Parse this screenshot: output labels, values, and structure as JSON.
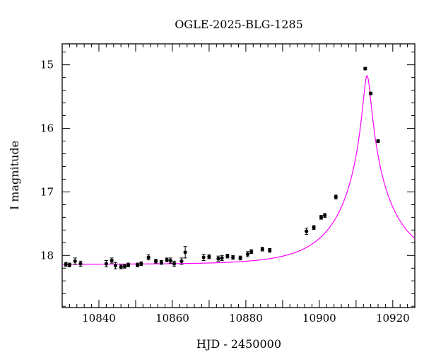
{
  "chart_data": {
    "type": "scatter",
    "title": "OGLE-2025-BLG-1285",
    "xlabel": "HJD - 2450000",
    "ylabel": "I magnitude",
    "xlim": [
      10830,
      10926
    ],
    "ylim": [
      18.82,
      14.67
    ],
    "y_inverted": true,
    "x_major_ticks": [
      10840,
      10860,
      10880,
      10900,
      10920
    ],
    "x_tick_labels": [
      "10840",
      "10860",
      "10880",
      "10900",
      "10920"
    ],
    "y_major_ticks": [
      15,
      16,
      17,
      18
    ],
    "y_tick_labels": [
      "15",
      "16",
      "17",
      "18"
    ],
    "grid": false,
    "series": [
      {
        "kind": "points",
        "color": "#000000",
        "x": [
          10831.0,
          10832.0,
          10833.5,
          10835.0,
          10842.0,
          10843.5,
          10844.5,
          10846.0,
          10847.0,
          10848.0,
          10850.5,
          10851.5,
          10853.5,
          10855.5,
          10857.0,
          10858.5,
          10859.5,
          10860.5,
          10862.5,
          10863.5,
          10868.5,
          10870.0,
          10872.5,
          10873.5,
          10875.0,
          10876.5,
          10878.5,
          10880.5,
          10881.5,
          10884.5,
          10886.5,
          10896.5,
          10898.5,
          10900.5,
          10901.5,
          10904.5,
          10912.5,
          10914.0,
          10916.0
        ],
        "y": [
          18.14,
          18.15,
          18.09,
          18.13,
          18.13,
          18.08,
          18.16,
          18.18,
          18.17,
          18.15,
          18.15,
          18.13,
          18.03,
          18.09,
          18.11,
          18.07,
          18.08,
          18.13,
          18.09,
          17.95,
          18.03,
          18.02,
          18.05,
          18.04,
          18.01,
          18.03,
          18.04,
          17.98,
          17.94,
          17.9,
          17.92,
          17.62,
          17.56,
          17.4,
          17.37,
          17.08,
          15.06,
          15.45,
          16.2
        ],
        "yerr": [
          0.03,
          0.03,
          0.05,
          0.04,
          0.05,
          0.04,
          0.05,
          0.03,
          0.03,
          0.03,
          0.03,
          0.03,
          0.04,
          0.03,
          0.03,
          0.03,
          0.04,
          0.04,
          0.05,
          0.09,
          0.05,
          0.03,
          0.04,
          0.04,
          0.03,
          0.03,
          0.03,
          0.04,
          0.03,
          0.03,
          0.03,
          0.05,
          0.03,
          0.03,
          0.03,
          0.03,
          0.02,
          0.02,
          0.02
        ]
      },
      {
        "kind": "model-curve",
        "color": "#ff00ff",
        "t0": 10913.0,
        "u0": 0.065,
        "tE": 15.0,
        "I_base": 18.14
      }
    ]
  }
}
